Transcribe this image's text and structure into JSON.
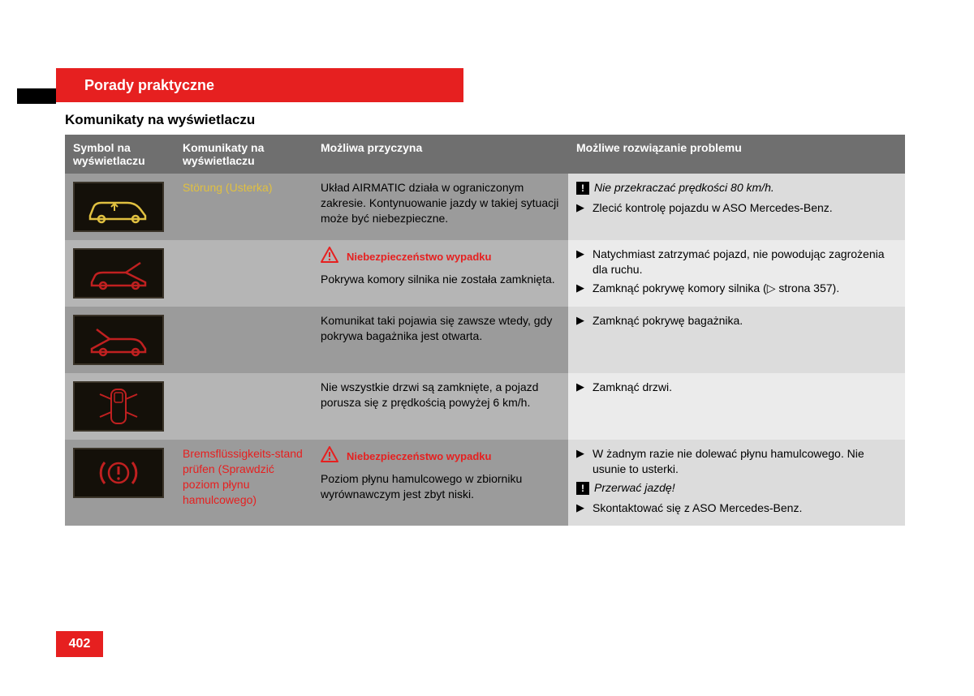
{
  "header": {
    "title": "Porady praktyczne",
    "subtitle": "Komunikaty na wyświetlaczu"
  },
  "columns": {
    "c1": "Symbol na wyświetlaczu",
    "c2": "Komunikaty na wyświetlaczu",
    "c3": "Możliwa przyczyna",
    "c4": "Możliwe rozwiązanie problemu"
  },
  "rows": [
    {
      "icon": "car-arrow-up-yellow",
      "icon_color": "#e0c040",
      "message": "Störung (Usterka)",
      "message_style": "yellow",
      "cause_warning": null,
      "cause": "Układ AIRMATIC działa w ograniczonym zakresie. Kontynuowanie jazdy w takiej sytuacji może być niebezpieczne.",
      "solution": [
        {
          "type": "exclaim",
          "text": "Nie przekraczać prędkości 80 km/h."
        },
        {
          "type": "bullet",
          "text": "Zlecić kontrolę pojazdu w ASO Mercedes-Benz."
        }
      ]
    },
    {
      "icon": "car-hood-open-red",
      "icon_color": "#c02020",
      "message": "",
      "message_style": "none",
      "cause_warning": "Niebezpieczeństwo wypadku",
      "cause": "Pokrywa komory silnika nie została zamknięta.",
      "solution": [
        {
          "type": "bullet",
          "text": "Natychmiast zatrzymać pojazd, nie powodując zagrożenia dla ruchu."
        },
        {
          "type": "bullet",
          "text": "Zamknąć pokrywę komory silnika (▷ strona 357)."
        }
      ]
    },
    {
      "icon": "car-trunk-open-red",
      "icon_color": "#c02020",
      "message": "",
      "message_style": "none",
      "cause_warning": null,
      "cause": "Komunikat taki pojawia się zawsze wtedy, gdy pokrywa bagażnika jest otwarta.",
      "solution": [
        {
          "type": "bullet",
          "text": "Zamknąć pokrywę bagażnika."
        }
      ]
    },
    {
      "icon": "car-doors-open-red",
      "icon_color": "#c02020",
      "message": "",
      "message_style": "none",
      "cause_warning": null,
      "cause": "Nie wszystkie drzwi są zamknięte, a pojazd porusza się z prędkością powyżej 6 km/h.",
      "solution": [
        {
          "type": "bullet",
          "text": "Zamknąć drzwi."
        }
      ]
    },
    {
      "icon": "brake-warning-red",
      "icon_color": "#c02020",
      "message": "Bremsflüssigkeits-stand prüfen (Sprawdzić poziom płynu hamulcowego)",
      "message_style": "red",
      "cause_warning": "Niebezpieczeństwo wypadku",
      "cause": "Poziom płynu hamulcowego w zbiorniku wyrównawczym jest zbyt niski.",
      "solution": [
        {
          "type": "bullet",
          "text": "W żadnym razie nie dolewać płynu hamulcowego. Nie usunie to usterki."
        },
        {
          "type": "exclaim",
          "text": "Przerwać jazdę!"
        },
        {
          "type": "bullet",
          "text": "Skontaktować się z ASO Mercedes-Benz."
        }
      ]
    }
  ],
  "page_number": "402",
  "colors": {
    "red": "#e62020",
    "yellow_text": "#e0c040",
    "header_gray": "#6f6f6f",
    "row_dark": "#9b9b9b",
    "row_light": "#b5b5b5",
    "sol_dark": "#dcdcdc",
    "sol_light": "#ebebeb",
    "black": "#000000",
    "white": "#ffffff",
    "box_border": "#3a3328",
    "box_bg": "#141009"
  }
}
